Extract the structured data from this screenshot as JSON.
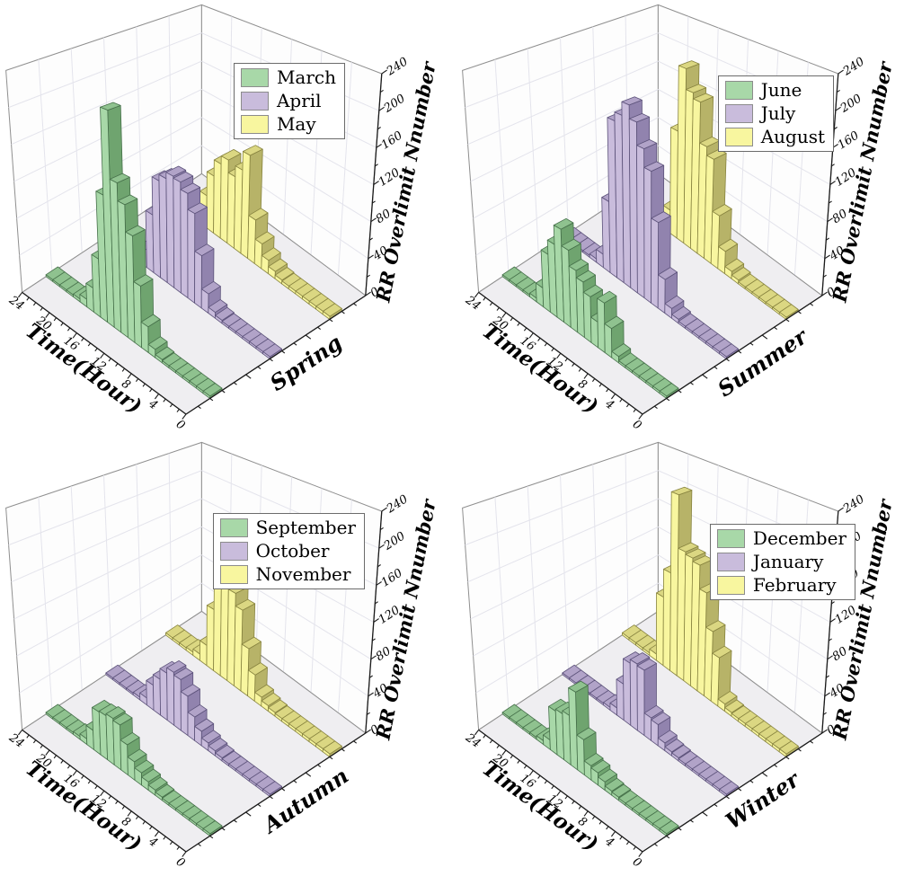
{
  "figure": {
    "background": "#ffffff"
  },
  "axes": {
    "x_label": "Time(Hour)",
    "z_label": "RR Overlimit Nnumber",
    "x_ticks": [
      24,
      20,
      16,
      12,
      8,
      4,
      0
    ],
    "z_ticks": [
      0,
      40,
      80,
      120,
      160,
      200,
      240
    ],
    "x_range": [
      0,
      24
    ],
    "z_range": [
      0,
      240
    ],
    "grid": "on"
  },
  "colors": {
    "wall": "#fdfdfd",
    "floor": "#efeef1",
    "grid": "#e4e4ec",
    "frame": "#8f8f8f",
    "axis": "#1a1a1a",
    "text": "#000000",
    "series": {
      "green": {
        "front": "#a8d8a8",
        "top": "#8fc28f",
        "side": "#6fa46f",
        "edge": "#46704a"
      },
      "purple": {
        "front": "#c9bcdc",
        "top": "#b1a3c8",
        "side": "#9183ae",
        "edge": "#5c527a"
      },
      "yellow": {
        "front": "#f8f69f",
        "top": "#dbd782",
        "side": "#b7b368",
        "edge": "#87833f"
      }
    }
  },
  "chart_data": [
    {
      "type": "3d-bar",
      "season": "Spring",
      "x_label": "Time(Hour)",
      "z_label": "RR Overlimit Nnumber",
      "hours": [
        0,
        1,
        2,
        3,
        4,
        5,
        6,
        7,
        8,
        9,
        10,
        11,
        12,
        13,
        14,
        15,
        16,
        17,
        18,
        19,
        20,
        21,
        22,
        23
      ],
      "series": [
        {
          "name": "March",
          "color": "green",
          "values": [
            2,
            2,
            2,
            2,
            2,
            2,
            2,
            3,
            8,
            25,
            60,
            105,
            132,
            150,
            220,
            130,
            60,
            25,
            8,
            3,
            2,
            2,
            2,
            2
          ]
        },
        {
          "name": "April",
          "color": "purple",
          "values": [
            2,
            2,
            2,
            2,
            2,
            2,
            2,
            3,
            6,
            20,
            55,
            95,
            112,
            120,
            122,
            115,
            108,
            65,
            20,
            6,
            2,
            2,
            2,
            2
          ]
        },
        {
          "name": "May",
          "color": "yellow",
          "values": [
            3,
            3,
            3,
            3,
            3,
            3,
            3,
            4,
            8,
            15,
            28,
            50,
            120,
            98,
            85,
            100,
            90,
            70,
            40,
            15,
            6,
            3,
            3,
            3
          ]
        }
      ]
    },
    {
      "type": "3d-bar",
      "season": "Summer",
      "x_label": "Time(Hour)",
      "z_label": "RR Overlimit Nnumber",
      "hours": [
        0,
        1,
        2,
        3,
        4,
        5,
        6,
        7,
        8,
        9,
        10,
        11,
        12,
        13,
        14,
        15,
        16,
        17,
        18,
        19,
        20,
        21,
        22,
        23
      ],
      "series": [
        {
          "name": "June",
          "color": "green",
          "values": [
            2,
            2,
            2,
            2,
            2,
            2,
            2,
            6,
            28,
            48,
            25,
            45,
            55,
            62,
            78,
            95,
            75,
            60,
            20,
            4,
            2,
            2,
            2,
            2
          ]
        },
        {
          "name": "July",
          "color": "purple",
          "values": [
            2,
            2,
            2,
            2,
            2,
            2,
            2,
            4,
            10,
            35,
            90,
            140,
            160,
            185,
            200,
            185,
            175,
            80,
            15,
            4,
            2,
            2,
            2,
            2
          ]
        },
        {
          "name": "August",
          "color": "yellow",
          "values": [
            2,
            2,
            2,
            2,
            2,
            2,
            2,
            4,
            8,
            25,
            60,
            120,
            130,
            178,
            185,
            210,
            130,
            28,
            8,
            3,
            2,
            2,
            2,
            2
          ]
        }
      ]
    },
    {
      "type": "3d-bar",
      "season": "Autumn",
      "x_label": "Time(Hour)",
      "z_label": "RR Overlimit Nnumber",
      "hours": [
        0,
        1,
        2,
        3,
        4,
        5,
        6,
        7,
        8,
        9,
        10,
        11,
        12,
        13,
        14,
        15,
        16,
        17,
        18,
        19,
        20,
        21,
        22,
        23
      ],
      "series": [
        {
          "name": "September",
          "color": "green",
          "values": [
            2,
            2,
            2,
            2,
            2,
            2,
            2,
            3,
            5,
            8,
            12,
            18,
            30,
            45,
            47,
            45,
            44,
            20,
            6,
            3,
            2,
            2,
            2,
            2
          ]
        },
        {
          "name": "October",
          "color": "purple",
          "values": [
            2,
            2,
            2,
            2,
            2,
            2,
            2,
            3,
            5,
            8,
            15,
            25,
            42,
            55,
            58,
            52,
            40,
            28,
            8,
            3,
            2,
            2,
            2,
            2
          ]
        },
        {
          "name": "November",
          "color": "yellow",
          "values": [
            3,
            3,
            3,
            3,
            3,
            3,
            3,
            3,
            4,
            6,
            10,
            30,
            55,
            95,
            110,
            165,
            152,
            75,
            25,
            8,
            4,
            3,
            3,
            3
          ]
        }
      ]
    },
    {
      "type": "3d-bar",
      "season": "Winter",
      "x_label": "Time(Hour)",
      "z_label": "RR Overlimit Nnumber",
      "hours": [
        0,
        1,
        2,
        3,
        4,
        5,
        6,
        7,
        8,
        9,
        10,
        11,
        12,
        13,
        14,
        15,
        16,
        17,
        18,
        19,
        20,
        21,
        22,
        23
      ],
      "series": [
        {
          "name": "December",
          "color": "green",
          "values": [
            2,
            2,
            2,
            2,
            2,
            2,
            2,
            3,
            4,
            8,
            12,
            14,
            35,
            78,
            50,
            47,
            45,
            10,
            4,
            2,
            2,
            2,
            2,
            2
          ]
        },
        {
          "name": "January",
          "color": "purple",
          "values": [
            2,
            2,
            2,
            2,
            2,
            2,
            2,
            3,
            4,
            8,
            22,
            24,
            70,
            72,
            68,
            40,
            8,
            3,
            2,
            2,
            2,
            2,
            2,
            2
          ]
        },
        {
          "name": "February",
          "color": "yellow",
          "values": [
            3,
            3,
            3,
            3,
            3,
            3,
            3,
            3,
            4,
            8,
            55,
            80,
            120,
            148,
            152,
            155,
            220,
            120,
            85,
            8,
            3,
            3,
            3,
            3
          ]
        }
      ]
    }
  ]
}
